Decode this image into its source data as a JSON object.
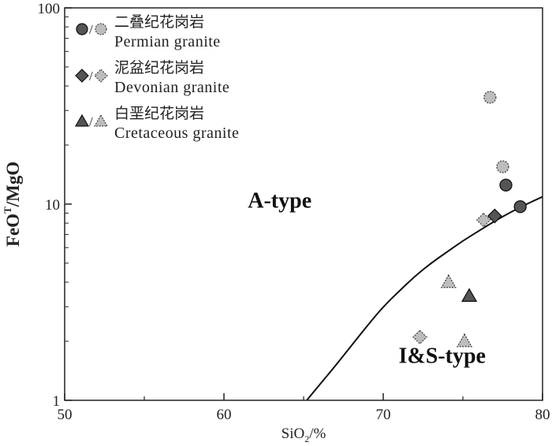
{
  "chart_data": {
    "type": "scatter",
    "xlabel": "SiO2/%",
    "xlabel_main": "SiO",
    "xlabel_sub": "2",
    "xlabel_tail": "/%",
    "ylabel": "FeOT/MgO",
    "ylabel_main": "FeO",
    "ylabel_sup": "T",
    "ylabel_tail": "/MgO",
    "xlim": [
      50,
      80
    ],
    "ylim": [
      1,
      100
    ],
    "yscale": "log",
    "x_ticks": [
      "50",
      "60",
      "70",
      "80"
    ],
    "y_ticks": [
      "1",
      "10",
      "100"
    ],
    "grid": false,
    "legend_position": "top-left",
    "series": [
      {
        "name_cn": "二叠纪花岗岩",
        "name": "Permian granite",
        "marker": "circle",
        "color_dark": "#555555",
        "color_light": "#bdbdbd",
        "points_dark": [
          [
            77.7,
            12.5
          ],
          [
            78.6,
            9.7
          ]
        ],
        "points_light": [
          [
            76.7,
            35.0
          ],
          [
            77.5,
            15.5
          ]
        ]
      },
      {
        "name_cn": "泥盆纪花岗岩",
        "name": "Devonian granite",
        "marker": "diamond",
        "color_dark": "#555555",
        "color_light": "#bdbdbd",
        "points_dark": [
          [
            77.0,
            8.7
          ]
        ],
        "points_light": [
          [
            76.3,
            8.3
          ],
          [
            72.3,
            2.1
          ]
        ]
      },
      {
        "name_cn": "白垩纪花岗岩",
        "name": "Cretaceous granite",
        "marker": "triangle",
        "color_dark": "#555555",
        "color_light": "#bdbdbd",
        "points_dark": [
          [
            75.4,
            3.4
          ]
        ],
        "points_light": [
          [
            74.1,
            4.0
          ],
          [
            75.1,
            2.0
          ]
        ]
      }
    ],
    "boundary_curve": [
      [
        65.2,
        1.0
      ],
      [
        66.0,
        1.2
      ],
      [
        67.0,
        1.5
      ],
      [
        68.0,
        1.9
      ],
      [
        69.0,
        2.4
      ],
      [
        70.0,
        3.0
      ],
      [
        71.0,
        3.6
      ],
      [
        72.0,
        4.3
      ],
      [
        73.0,
        5.0
      ],
      [
        74.0,
        5.7
      ],
      [
        75.0,
        6.5
      ],
      [
        76.0,
        7.3
      ],
      [
        77.0,
        8.2
      ],
      [
        78.0,
        9.1
      ],
      [
        79.0,
        10.0
      ],
      [
        80.0,
        10.9
      ]
    ],
    "annotations": [
      {
        "text": "A-type",
        "x": 63.5,
        "y": 10.5
      },
      {
        "text": "I&S-type",
        "x": 73.7,
        "y": 1.7
      }
    ]
  }
}
